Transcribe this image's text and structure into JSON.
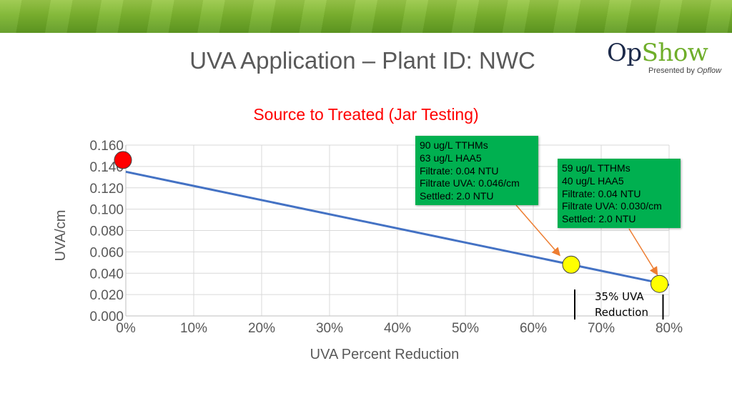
{
  "slide": {
    "title": "UVA Application – Plant ID: NWC",
    "logo_main_op": "Op",
    "logo_main_show": "Show",
    "logo_sub_prefix": "Presented by ",
    "logo_sub_brand": "Opflow"
  },
  "chart_data": {
    "type": "scatter",
    "title": "Source to Treated (Jar Testing)",
    "xlabel": "UVA Percent Reduction",
    "ylabel": "UVA/cm",
    "xlim": [
      0,
      0.8
    ],
    "ylim": [
      0,
      0.16
    ],
    "xticks": [
      "0%",
      "10%",
      "20%",
      "30%",
      "40%",
      "50%",
      "60%",
      "70%",
      "80%"
    ],
    "yticks": [
      "0.000",
      "0.020",
      "0.040",
      "0.060",
      "0.080",
      "0.100",
      "0.120",
      "0.140",
      "0.160"
    ],
    "grid": true,
    "series": [
      {
        "points": [
          {
            "x": 0.0,
            "y": 0.146,
            "color": "#ff0000"
          },
          {
            "x": 0.66,
            "y": 0.048,
            "color": "#ffff00"
          },
          {
            "x": 0.79,
            "y": 0.03,
            "color": "#ffff00"
          }
        ]
      }
    ],
    "trendline": {
      "x": [
        0.0,
        0.8
      ],
      "y": [
        0.135,
        0.029
      ],
      "color": "#4472c4"
    },
    "annotations": [
      {
        "lines": [
          "90 ug/L TTHMs",
          "63 ug/L HAA5",
          "Filtrate: 0.04 NTU",
          "Filtrate UVA: 0.046/cm",
          "Settled: 2.0 NTU"
        ],
        "background": "#00b050"
      },
      {
        "lines": [
          "59 ug/L TTHMs",
          "40 ug/L HAA5",
          "Filtrate: 0.04 NTU",
          "Filtrate UVA: 0.030/cm",
          "Settled: 2.0 NTU"
        ],
        "background": "#00b050"
      }
    ],
    "reduction_label": [
      "35% UVA",
      "Reduction"
    ]
  }
}
